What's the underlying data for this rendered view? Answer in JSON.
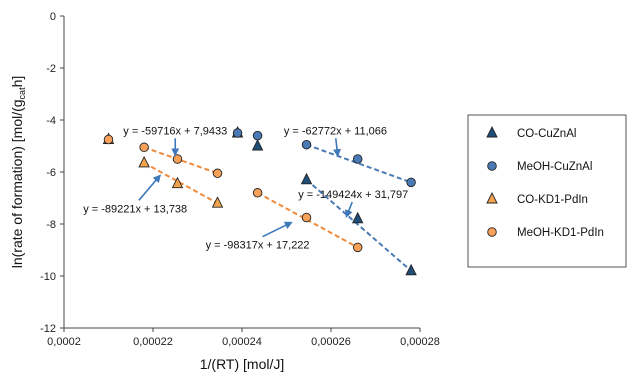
{
  "chart_data": {
    "type": "scatter",
    "xlabel": "1/(RT) [mol/J]",
    "ylabel_parts": [
      "ln(rate of formation) [mol/(g",
      "cat",
      "h]"
    ],
    "xlim": [
      0.0002,
      0.00028
    ],
    "ylim": [
      -12,
      0
    ],
    "x_ticks": [
      0.0002,
      0.00022,
      0.00024,
      0.00026,
      0.00028
    ],
    "x_tick_labels": [
      "0,0002",
      "0,00022",
      "0,00024",
      "0,00026",
      "0,00028"
    ],
    "y_ticks": [
      0,
      -2,
      -4,
      -6,
      -8,
      -10,
      -12
    ],
    "y_tick_labels": [
      "0",
      "-2",
      "-4",
      "-6",
      "-8",
      "-10",
      "-12"
    ],
    "grid": false,
    "legend_position": "right",
    "series": [
      {
        "name": "CO-CuZnAl",
        "marker": "triangle",
        "color": "#1f4e79",
        "points": [
          [
            0.000239,
            -4.5
          ],
          [
            0.0002435,
            -5.0
          ],
          [
            0.0002545,
            -6.3
          ],
          [
            0.000266,
            -7.8
          ],
          [
            0.000278,
            -9.8
          ]
        ]
      },
      {
        "name": "MeOH-CuZnAl",
        "marker": "circle",
        "color": "#4a7ab5",
        "points": [
          [
            0.000239,
            -4.5
          ],
          [
            0.0002435,
            -4.6
          ],
          [
            0.0002545,
            -4.95
          ],
          [
            0.000266,
            -5.5
          ],
          [
            0.000278,
            -6.4
          ]
        ]
      },
      {
        "name": "CO-KD1-PdIn",
        "marker": "triangle",
        "color": "#f4a34d",
        "points": [
          [
            0.00021,
            -4.75
          ],
          [
            0.000218,
            -5.65
          ],
          [
            0.0002255,
            -6.45
          ],
          [
            0.0002345,
            -7.2
          ]
        ]
      },
      {
        "name": "MeOH-KD1-PdIn",
        "marker": "circle",
        "color": "#f6a05a",
        "points": [
          [
            0.00021,
            -4.75
          ],
          [
            0.000218,
            -5.05
          ],
          [
            0.0002255,
            -5.5
          ],
          [
            0.0002345,
            -6.05
          ],
          [
            0.0002435,
            -6.8
          ],
          [
            0.0002545,
            -7.75
          ],
          [
            0.000266,
            -8.9
          ]
        ]
      }
    ],
    "trendlines": [
      {
        "series": "MeOH-CuZnAl",
        "color": "#4a7ab5",
        "x": [
          0.0002545,
          0.000278
        ],
        "y": [
          -4.95,
          -6.4
        ]
      },
      {
        "series": "CO-CuZnAl",
        "color": "#4a7ab5",
        "x": [
          0.0002545,
          0.000278
        ],
        "y": [
          -6.3,
          -9.8
        ]
      },
      {
        "series": "MeOH-KD1-PdIn",
        "color": "#f08a3a",
        "x": [
          0.000218,
          0.0002345
        ],
        "y": [
          -5.05,
          -6.05
        ]
      },
      {
        "series": "CO-KD1-PdIn",
        "color": "#f08a3a",
        "x": [
          0.000218,
          0.0002345
        ],
        "y": [
          -5.65,
          -7.2
        ]
      },
      {
        "series": "MeOH-KD1-PdIn",
        "color": "#f08a3a",
        "x": [
          0.0002435,
          0.000266
        ],
        "y": [
          -6.8,
          -8.9
        ]
      }
    ],
    "annotations": [
      {
        "text": "y = -59716x + 7,9433",
        "x": 0.000225,
        "y": -4.55,
        "arrow_to": [
          0.000225,
          -5.32
        ]
      },
      {
        "text": "y = -89221x + 13,738",
        "x": 0.000216,
        "y": -7.55,
        "arrow_to": [
          0.0002215,
          -6.15
        ]
      },
      {
        "text": "y = -62772x + 11,066",
        "x": 0.000261,
        "y": -4.55,
        "arrow_to": [
          0.0002615,
          -5.35
        ]
      },
      {
        "text": "y = -149424x + 31,797",
        "x": 0.000265,
        "y": -7.0,
        "arrow_to": [
          0.0002635,
          -7.7
        ]
      },
      {
        "text": "y = -98317x + 17,222",
        "x": 0.0002435,
        "y": -8.95,
        "arrow_to": [
          0.000251,
          -7.95
        ]
      }
    ]
  }
}
